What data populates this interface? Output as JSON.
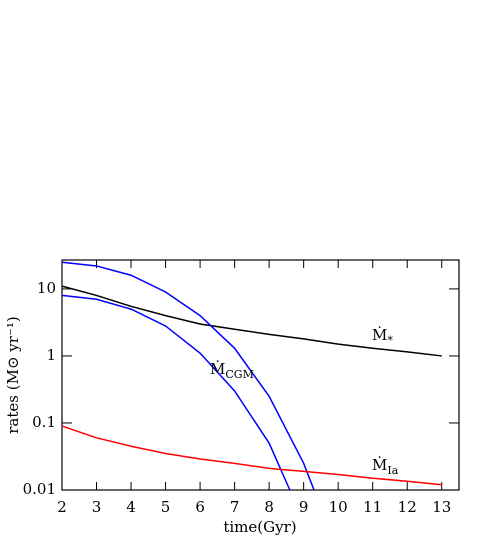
{
  "chart_data": {
    "type": "line",
    "x_label": "time(Gyr)",
    "y_label": "rates (M⊙ yr⁻¹)",
    "xlim": [
      2,
      13.5
    ],
    "ylim": [
      0.01,
      27
    ],
    "log_y": true,
    "xticks": [
      2,
      3,
      4,
      5,
      6,
      7,
      8,
      9,
      10,
      11,
      12,
      13
    ],
    "yticks": [
      0.01,
      0.1,
      1,
      10
    ],
    "series": [
      {
        "color": "#000000",
        "x": [
          2,
          3,
          4,
          5,
          6,
          7,
          8,
          9,
          10,
          11,
          12,
          13
        ],
        "values": [
          11,
          8,
          5.5,
          4,
          3,
          2.5,
          2.1,
          1.8,
          1.5,
          1.3,
          1.15,
          1.0
        ]
      },
      {
        "color": "#0000ff",
        "x": [
          2,
          3,
          4,
          5,
          6,
          7,
          8,
          9,
          9.3
        ],
        "values": [
          25,
          22,
          16,
          9,
          4,
          1.3,
          0.25,
          0.025,
          0.01
        ]
      },
      {
        "color": "#0000ff",
        "x": [
          2,
          3,
          4,
          5,
          6,
          7,
          8,
          8.6
        ],
        "values": [
          8,
          7,
          5,
          2.8,
          1.1,
          0.3,
          0.05,
          0.01
        ]
      },
      {
        "color": "#ff0000",
        "x": [
          2,
          3,
          4,
          5,
          6,
          7,
          8,
          9,
          10,
          11,
          12,
          13
        ],
        "values": [
          0.09,
          0.06,
          0.045,
          0.035,
          0.029,
          0.025,
          0.021,
          0.019,
          0.017,
          0.015,
          0.0135,
          0.012
        ]
      }
    ],
    "annotations": [
      {
        "text": "Ṁ",
        "sub": "*"
      },
      {
        "text": "Ṁ",
        "sub": "CGM"
      },
      {
        "text": "Ṁ",
        "sub": "Ia"
      }
    ]
  }
}
